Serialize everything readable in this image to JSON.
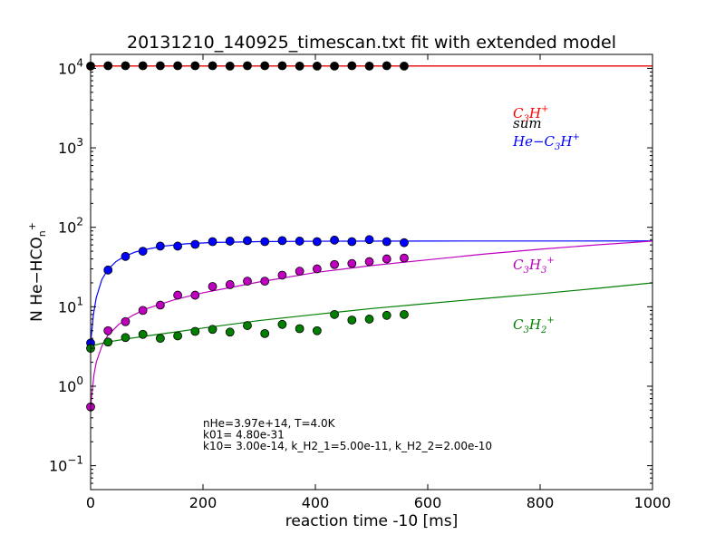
{
  "chart_data": {
    "type": "scatter",
    "title": "20131210_140925_timescan.txt fit with extended model",
    "xlabel": "reaction time -10 [ms]",
    "ylabel": "N He−HCO",
    "ylabel_sub": "n",
    "ylabel_sup": "+",
    "xlim": [
      0,
      1000
    ],
    "ylim": [
      0.05,
      15000
    ],
    "yscale": "log",
    "xticks": [
      0,
      200,
      400,
      600,
      800,
      1000
    ],
    "yticks": [
      {
        "value": 0.1,
        "base": "10",
        "exp": "−1"
      },
      {
        "value": 1,
        "base": "10",
        "exp": "0"
      },
      {
        "value": 10,
        "base": "10",
        "exp": "1"
      },
      {
        "value": 100,
        "base": "10",
        "exp": "2"
      },
      {
        "value": 1000,
        "base": "10",
        "exp": "3"
      },
      {
        "value": 10000,
        "base": "10",
        "exp": "4"
      }
    ],
    "grid": false,
    "x": [
      0,
      31,
      62,
      93,
      124,
      155,
      186,
      217,
      248,
      279,
      310,
      341,
      372,
      403,
      434,
      465,
      496,
      527,
      558
    ],
    "series": [
      {
        "name": "C3H+",
        "legend_parts": [
          [
            "C",
            ""
          ],
          [
            "3",
            "sub"
          ],
          [
            "H",
            ""
          ],
          [
            "+",
            "sup"
          ]
        ],
        "color": "#ff0000",
        "values": [],
        "fit": [
          [
            0,
            10700
          ],
          [
            1000,
            10700
          ]
        ]
      },
      {
        "name": "sum",
        "legend_parts": [
          [
            "sum",
            ""
          ]
        ],
        "color": "#000000",
        "values": [
          10700,
          10800,
          10800,
          10800,
          10800,
          10800,
          10800,
          10800,
          10700,
          10800,
          10800,
          10800,
          10700,
          10700,
          10700,
          10800,
          10700,
          10800,
          10700
        ],
        "fit": [
          [
            0,
            10700
          ],
          [
            1000,
            10700
          ]
        ]
      },
      {
        "name": "He−C3H+",
        "legend_parts": [
          [
            "He−C",
            ""
          ],
          [
            "3",
            "sub"
          ],
          [
            "H",
            ""
          ],
          [
            "+",
            "sup"
          ]
        ],
        "color": "#0000ff",
        "values": [
          3.5,
          29,
          43,
          50,
          58,
          58,
          61,
          66,
          67,
          68,
          66,
          68,
          67,
          66,
          69,
          66,
          70,
          66,
          64
        ],
        "fit": [
          [
            0,
            3.5
          ],
          [
            5,
            8
          ],
          [
            10,
            13
          ],
          [
            20,
            22
          ],
          [
            30,
            29
          ],
          [
            45,
            37
          ],
          [
            60,
            43
          ],
          [
            80,
            49
          ],
          [
            100,
            53
          ],
          [
            130,
            58
          ],
          [
            170,
            62
          ],
          [
            220,
            64.5
          ],
          [
            300,
            66
          ],
          [
            400,
            66.8
          ],
          [
            600,
            67.2
          ],
          [
            1000,
            67.3
          ]
        ]
      },
      {
        "name": "C3H3+",
        "legend_parts": [
          [
            "C",
            ""
          ],
          [
            "3",
            "sub"
          ],
          [
            "H",
            ""
          ],
          [
            "3",
            "sub"
          ],
          [
            "+",
            "sup"
          ]
        ],
        "color": "#bf00bf",
        "values": [
          0.55,
          5,
          6.5,
          9,
          10.5,
          14,
          14,
          18,
          19,
          21,
          21,
          25,
          28,
          30,
          34,
          35,
          37,
          40,
          41
        ],
        "fit": [
          [
            0,
            0.55
          ],
          [
            3,
            0.9
          ],
          [
            6,
            1.4
          ],
          [
            10,
            2
          ],
          [
            20,
            3.2
          ],
          [
            30,
            4.3
          ],
          [
            50,
            6
          ],
          [
            75,
            7.8
          ],
          [
            100,
            9.5
          ],
          [
            150,
            12.3
          ],
          [
            200,
            15
          ],
          [
            300,
            20.5
          ],
          [
            400,
            27
          ],
          [
            500,
            33
          ],
          [
            600,
            39
          ],
          [
            700,
            46
          ],
          [
            800,
            53
          ],
          [
            900,
            60
          ],
          [
            1000,
            67
          ]
        ]
      },
      {
        "name": "C3H2+",
        "legend_parts": [
          [
            "C",
            ""
          ],
          [
            "3",
            "sub"
          ],
          [
            "H",
            ""
          ],
          [
            "2",
            "sub"
          ],
          [
            "+",
            "sup"
          ]
        ],
        "color": "#007f00",
        "values": [
          3,
          3.6,
          4.1,
          4.5,
          4,
          4.3,
          4.9,
          5.2,
          4.8,
          5.8,
          4.6,
          6,
          5.3,
          5,
          8,
          6.8,
          7,
          7.8,
          8
        ],
        "fit": [
          [
            0,
            3.2
          ],
          [
            30,
            3.6
          ],
          [
            60,
            3.9
          ],
          [
            100,
            4.3
          ],
          [
            150,
            4.8
          ],
          [
            200,
            5.4
          ],
          [
            300,
            6.7
          ],
          [
            400,
            8
          ],
          [
            500,
            9.5
          ],
          [
            600,
            11
          ],
          [
            700,
            12.7
          ],
          [
            800,
            14.6
          ],
          [
            900,
            17
          ],
          [
            1000,
            20
          ]
        ]
      }
    ],
    "legend_position": "right",
    "annotations": [
      "nHe=3.97e+14, T=4.0K",
      "k01= 4.80e-31",
      "k10= 3.00e-14, k_H2_1=5.00e-11, k_H2_2=2.00e-10"
    ]
  }
}
